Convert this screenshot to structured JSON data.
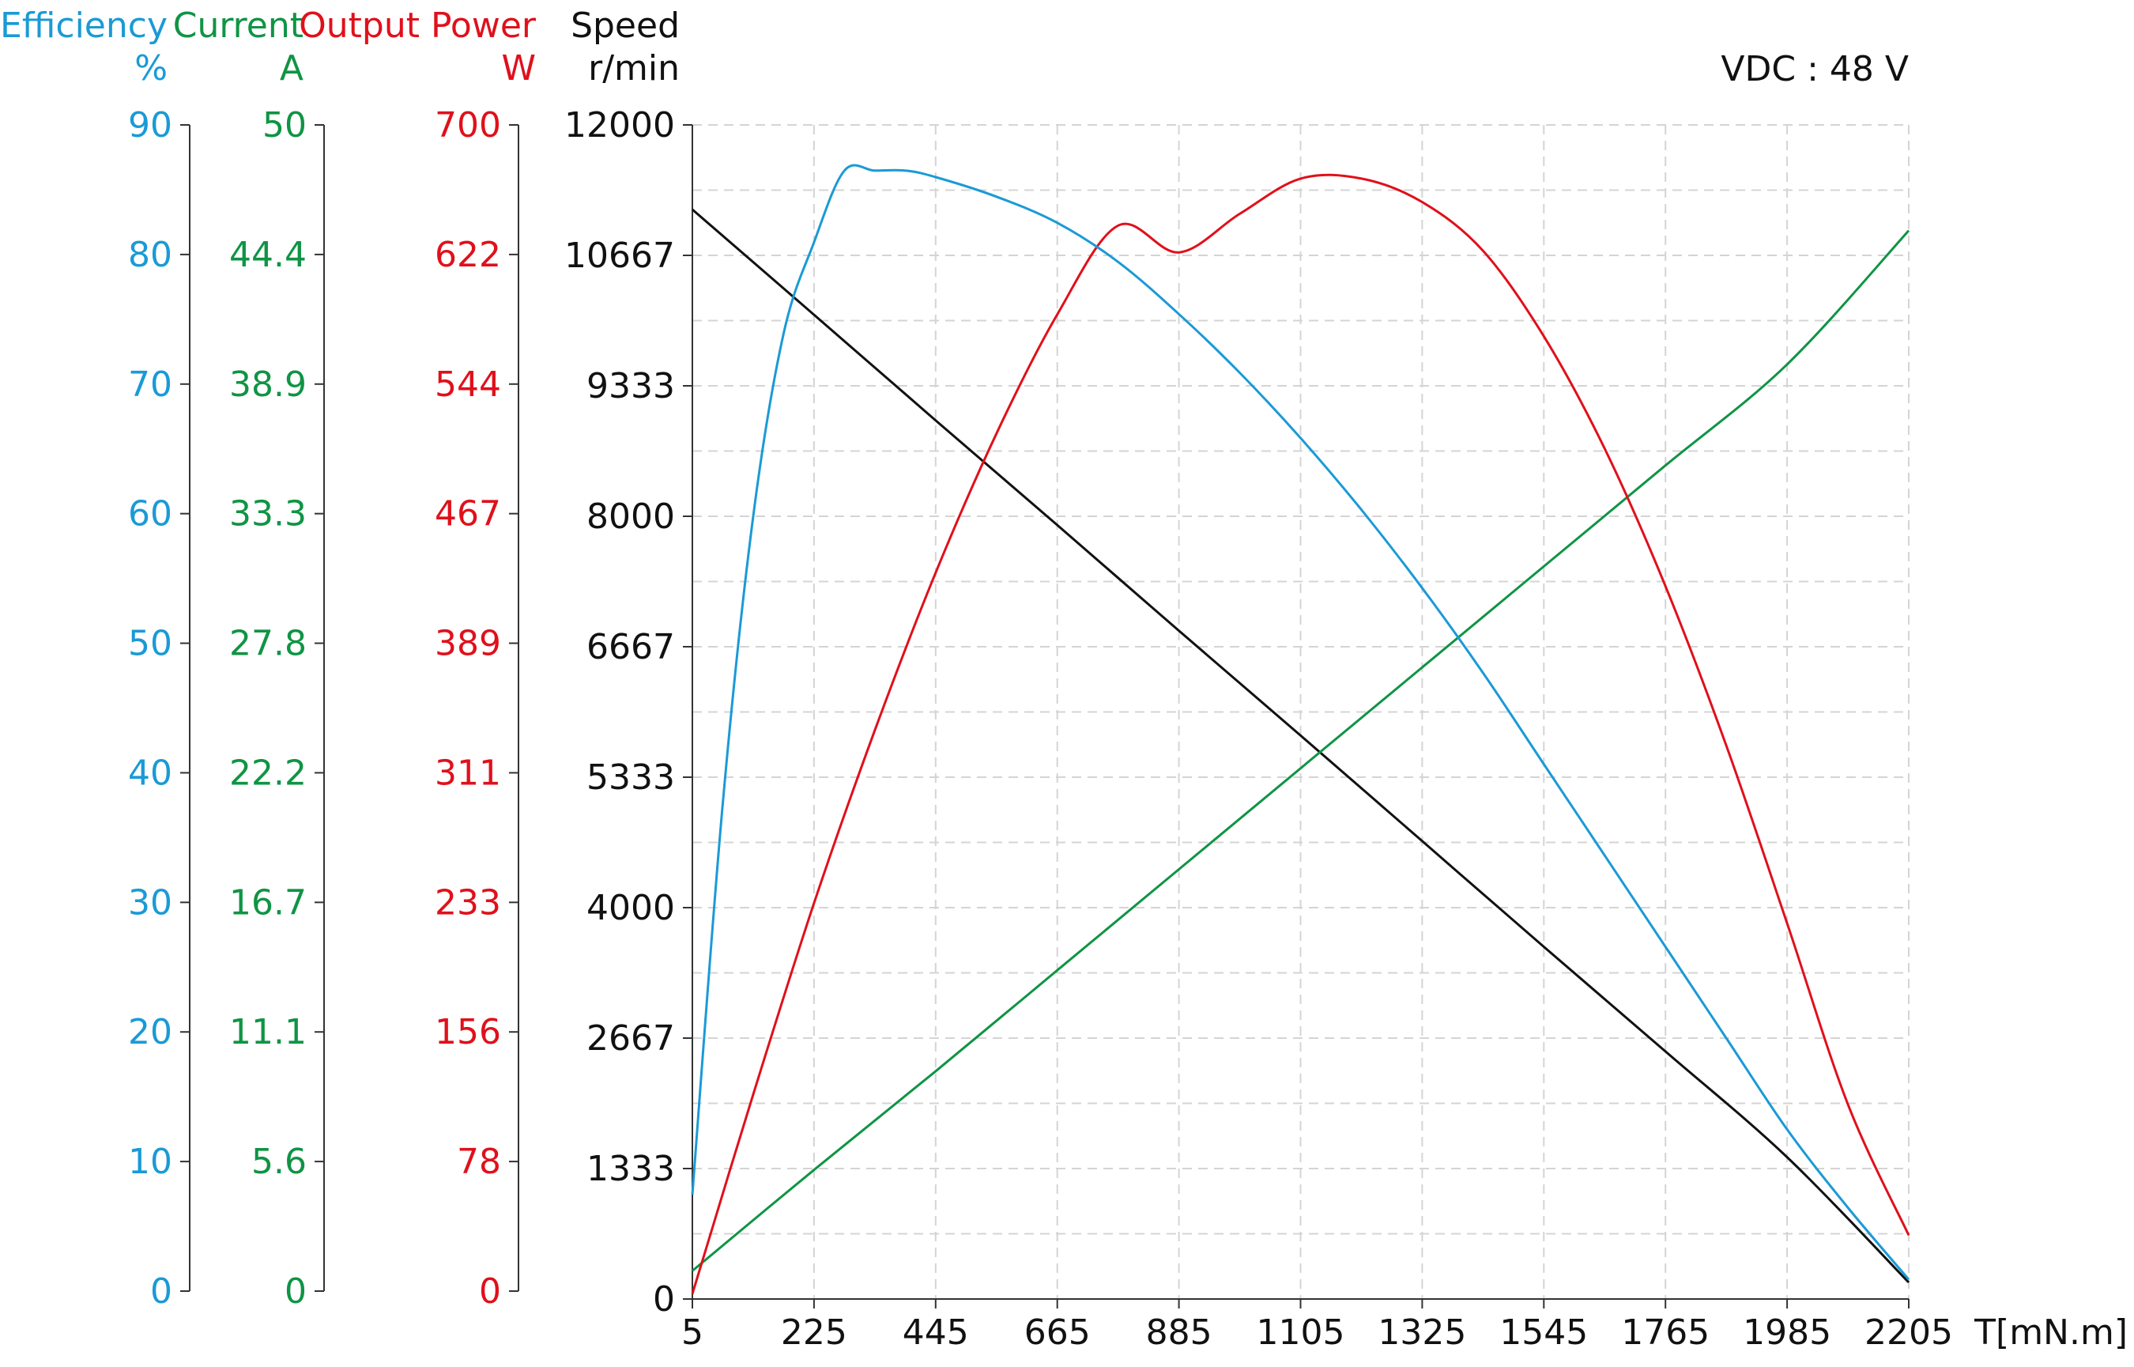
{
  "chart_data": {
    "type": "line",
    "annotation": "VDC : 48 V",
    "xlabel": "T[mN.m]",
    "x_ticks": [
      5,
      225,
      445,
      665,
      885,
      1105,
      1325,
      1545,
      1765,
      1985,
      2205
    ],
    "xlim": [
      5,
      2205
    ],
    "axes": {
      "efficiency": {
        "title": "Efficiency",
        "unit": "%",
        "color": "#1a9ad6",
        "ticks": [
          "0",
          "10",
          "20",
          "30",
          "40",
          "50",
          "60",
          "70",
          "80",
          "90"
        ],
        "range": [
          0,
          90
        ]
      },
      "current": {
        "title": "Current",
        "unit": "A",
        "color": "#0f9444",
        "ticks": [
          "0",
          "5.6",
          "11.1",
          "16.7",
          "22.2",
          "27.8",
          "33.3",
          "38.9",
          "44.4",
          "50"
        ],
        "range": [
          0,
          50
        ]
      },
      "power": {
        "title": "Output Power",
        "unit": "W",
        "color": "#e0101b",
        "ticks": [
          "0",
          "78",
          "156",
          "233",
          "311",
          "389",
          "467",
          "544",
          "622",
          "700"
        ],
        "range": [
          0,
          700
        ]
      },
      "speed": {
        "title": "Speed",
        "unit": "r/min",
        "color": "#111111",
        "ticks": [
          "0",
          "1333",
          "2667",
          "4000",
          "5333",
          "6667",
          "8000",
          "9333",
          "10667",
          "12000"
        ],
        "range": [
          0,
          12000
        ]
      }
    },
    "series": [
      {
        "axis": "speed",
        "color": "#111111",
        "x": [
          5,
          225,
          445,
          665,
          885,
          1105,
          1325,
          1545,
          1765,
          1985,
          2205
        ],
        "y": [
          11135,
          10060,
          8980,
          7910,
          6830,
          5760,
          4680,
          3600,
          2530,
          1450,
          170
        ]
      },
      {
        "axis": "current",
        "color": "#0f9444",
        "x": [
          5,
          225,
          445,
          665,
          885,
          1105,
          1325,
          1545,
          1765,
          1985,
          2205
        ],
        "y": [
          1.2,
          5.5,
          9.7,
          14.0,
          18.3,
          22.6,
          26.9,
          31.2,
          35.5,
          39.8,
          45.5
        ]
      },
      {
        "axis": "power",
        "color": "#e0101b",
        "x": [
          5,
          115,
          225,
          335,
          445,
          555,
          665,
          775,
          885,
          995,
          1105,
          1215,
          1325,
          1435,
          1545,
          1655,
          1765,
          1875,
          1985,
          2095,
          2205
        ],
        "y": [
          3,
          122,
          236,
          339,
          433,
          516,
          587,
          640,
          624,
          647,
          668,
          668,
          654,
          625,
          574,
          507,
          425,
          330,
          224,
          116,
          38
        ]
      },
      {
        "axis": "efficiency",
        "color": "#1a9ad6",
        "x": [
          5,
          60,
          115,
          170,
          225,
          280,
          335,
          390,
          445,
          555,
          665,
          775,
          885,
          995,
          1105,
          1215,
          1325,
          1435,
          1545,
          1655,
          1765,
          1875,
          1985,
          2095,
          2205
        ],
        "y": [
          8,
          38,
          60,
          74,
          81,
          86.5,
          86.5,
          86.5,
          86,
          84.5,
          82.5,
          79.5,
          75.5,
          71,
          66,
          60.5,
          54.5,
          48,
          41,
          34,
          27,
          20,
          13,
          7,
          1.5
        ]
      }
    ]
  }
}
